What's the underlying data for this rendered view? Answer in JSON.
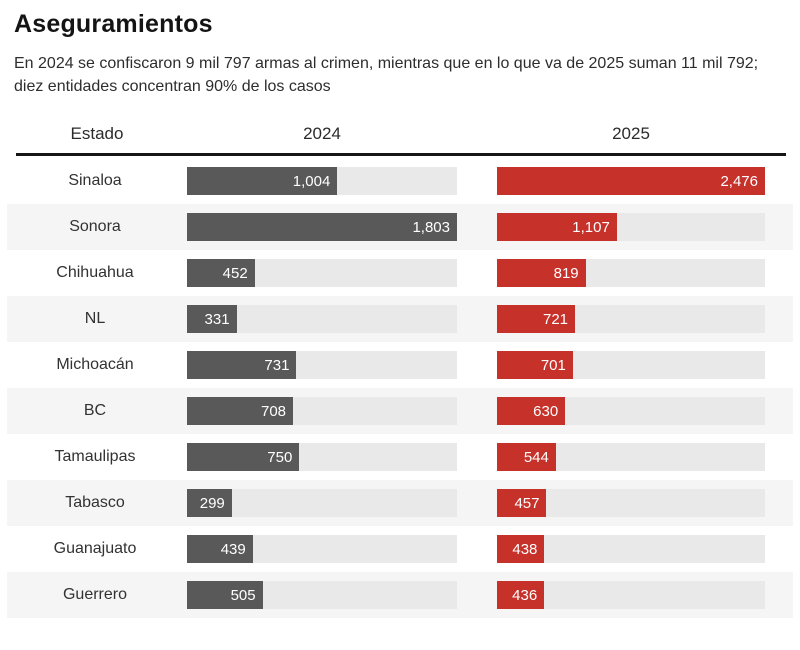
{
  "header": {
    "title": "Aseguramientos",
    "subtitle": "En 2024 se confiscaron 9 mil 797 armas al crimen, mientras que en lo que va de 2025 suman 11 mil 792; diez entidades concentran 90% de los casos"
  },
  "table": {
    "columns": [
      "Estado",
      "2024",
      "2025"
    ]
  },
  "chart_data": {
    "type": "bar",
    "orientation": "horizontal",
    "title": "Aseguramientos",
    "subtitle": "En 2024 se confiscaron 9 mil 797 armas al crimen, mientras que en lo que va de 2025 suman 11 mil 792; diez entidades concentran 90% de los casos",
    "column_headers": [
      "Estado",
      "2024",
      "2025"
    ],
    "categories": [
      "Sinaloa",
      "Sonora",
      "Chihuahua",
      "NL",
      "Michoacán",
      "BC",
      "Tamaulipas",
      "Tabasco",
      "Guanajuato",
      "Guerrero"
    ],
    "series": [
      {
        "name": "2024",
        "color": "#595959",
        "values": [
          1004,
          1803,
          452,
          331,
          731,
          708,
          750,
          299,
          439,
          505
        ],
        "xlim": [
          0,
          1803
        ]
      },
      {
        "name": "2025",
        "color": "#c6312a",
        "values": [
          2476,
          1107,
          819,
          721,
          701,
          630,
          544,
          457,
          438,
          436
        ],
        "xlim": [
          0,
          2476
        ]
      }
    ],
    "value_labels": "inside-right, white, thousands comma separator",
    "layout_hints": {
      "each_column_scaled_to_own_max": true,
      "track_color": "#e9e9e9",
      "row_stripe_color": "#f5f5f5",
      "grid": "off",
      "legend": "column headers act as legend"
    }
  },
  "colors": {
    "bar_2024": "#595959",
    "bar_2025": "#c6312a",
    "track": "#e9e9e9",
    "row_stripe": "#f5f5f5",
    "header_rule": "#161616"
  }
}
